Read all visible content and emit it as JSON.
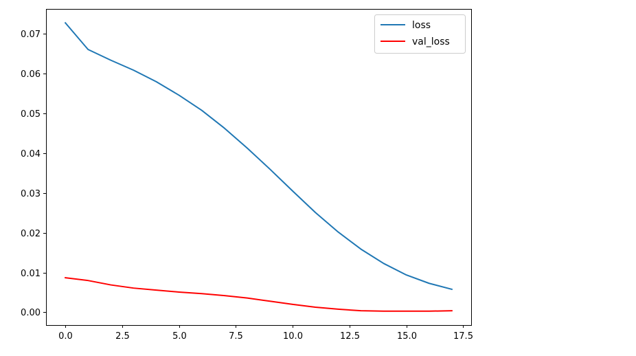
{
  "chart_data": {
    "type": "line",
    "title": "",
    "xlabel": "",
    "ylabel": "",
    "xlim": [
      -0.85,
      17.85
    ],
    "ylim": [
      -0.0032,
      0.0763
    ],
    "x_ticks": [
      0.0,
      2.5,
      5.0,
      7.5,
      10.0,
      12.5,
      15.0,
      17.5
    ],
    "x_tick_labels": [
      "0.0",
      "2.5",
      "5.0",
      "7.5",
      "10.0",
      "12.5",
      "15.0",
      "17.5"
    ],
    "y_ticks": [
      0.0,
      0.01,
      0.02,
      0.03,
      0.04,
      0.05,
      0.06,
      0.07
    ],
    "y_tick_labels": [
      "0.00",
      "0.01",
      "0.02",
      "0.03",
      "0.04",
      "0.05",
      "0.06",
      "0.07"
    ],
    "grid": false,
    "legend_position": "top-right",
    "x": [
      0,
      1,
      2,
      3,
      4,
      5,
      6,
      7,
      8,
      9,
      10,
      11,
      12,
      13,
      14,
      15,
      16,
      17
    ],
    "series": [
      {
        "name": "loss",
        "color": "#1f77b4",
        "values": [
          0.0728,
          0.0661,
          0.0634,
          0.0609,
          0.058,
          0.0546,
          0.0508,
          0.0463,
          0.0413,
          0.036,
          0.0305,
          0.0251,
          0.0202,
          0.0159,
          0.0123,
          0.0094,
          0.0073,
          0.0058
        ]
      },
      {
        "name": "val_loss",
        "color": "#ff0000",
        "values": [
          0.0087,
          0.008,
          0.0069,
          0.0061,
          0.0056,
          0.0051,
          0.0047,
          0.0042,
          0.0036,
          0.0028,
          0.002,
          0.0013,
          0.0008,
          0.0004,
          0.0003,
          0.0003,
          0.0003,
          0.0004
        ]
      }
    ]
  }
}
